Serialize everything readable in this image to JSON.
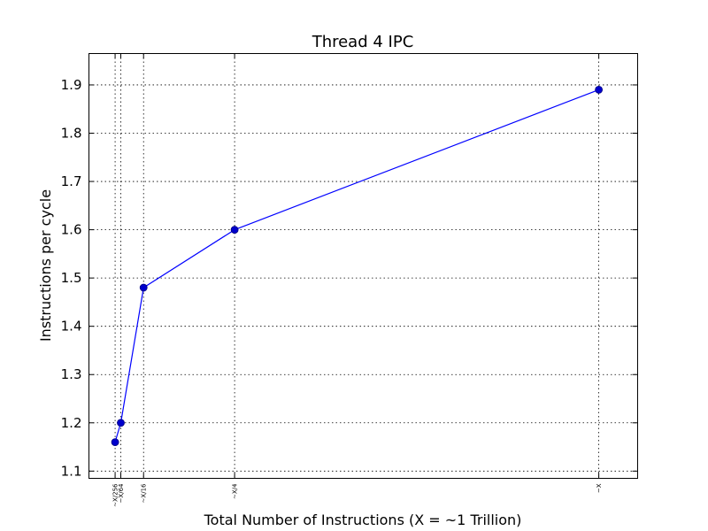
{
  "chart_data": {
    "type": "line",
    "title": "Thread 4 IPC",
    "xlabel": "Total Number of Instructions (X = ~1 Trillion)",
    "ylabel": "Instructions per cycle",
    "x_scale": "linear",
    "xlim": [
      -0.05,
      1.08
    ],
    "ylim": [
      1.085,
      1.965
    ],
    "grid": true,
    "x_ticks": [
      {
        "value": 0.00390625,
        "label": "~X/256"
      },
      {
        "value": 0.015625,
        "label": "~X/64"
      },
      {
        "value": 0.0625,
        "label": "~X/16"
      },
      {
        "value": 0.25,
        "label": "~X/4"
      },
      {
        "value": 1.0,
        "label": "~X"
      }
    ],
    "y_ticks": [
      {
        "value": 1.1,
        "label": "1.1"
      },
      {
        "value": 1.2,
        "label": "1.2"
      },
      {
        "value": 1.3,
        "label": "1.3"
      },
      {
        "value": 1.4,
        "label": "1.4"
      },
      {
        "value": 1.5,
        "label": "1.5"
      },
      {
        "value": 1.6,
        "label": "1.6"
      },
      {
        "value": 1.7,
        "label": "1.7"
      },
      {
        "value": 1.8,
        "label": "1.8"
      },
      {
        "value": 1.9,
        "label": "1.9"
      }
    ],
    "series": [
      {
        "color": "#0000ff",
        "marker": "circle",
        "x": [
          0.00390625,
          0.015625,
          0.0625,
          0.25,
          1.0
        ],
        "y": [
          1.16,
          1.2,
          1.48,
          1.6,
          1.89
        ]
      }
    ]
  }
}
